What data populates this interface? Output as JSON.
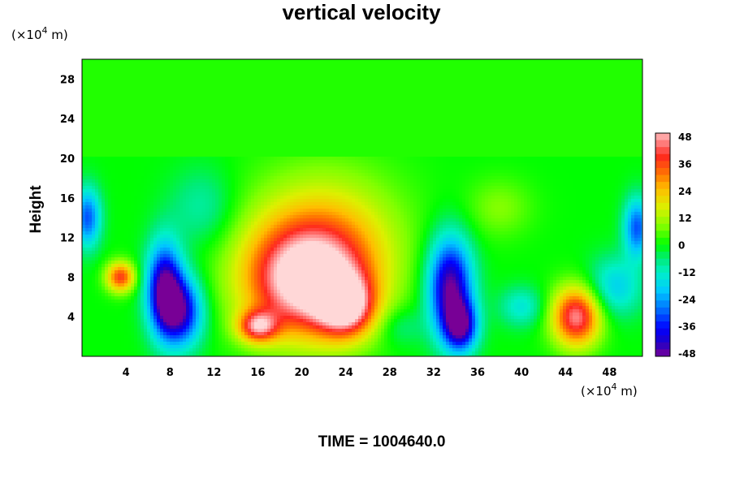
{
  "chart_data": {
    "type": "heatmap",
    "title": "vertical velocity",
    "ylabel": "Height",
    "x_unit": "(×10",
    "y_unit": "(×10",
    "unit_exp": "4",
    "unit_tail": " m)",
    "xlim": [
      0,
      51
    ],
    "ylim": [
      0,
      30
    ],
    "x_ticks": [
      4,
      8,
      12,
      16,
      20,
      24,
      28,
      32,
      36,
      40,
      44,
      48
    ],
    "y_ticks": [
      4,
      8,
      12,
      16,
      20,
      24,
      28
    ],
    "colorbar": {
      "min": -48,
      "max": 48,
      "ticks": [
        48,
        36,
        24,
        12,
        0,
        -12,
        -24,
        -36,
        -48
      ]
    },
    "features": [
      {
        "x": 20.5,
        "y": 7.5,
        "value": 52,
        "rx": 5.5,
        "ry": 5.5
      },
      {
        "x": 24.0,
        "y": 5.0,
        "value": 38,
        "rx": 2.5,
        "ry": 3.0
      },
      {
        "x": 16.0,
        "y": 3.0,
        "value": 36,
        "rx": 1.8,
        "ry": 1.6
      },
      {
        "x": 45.0,
        "y": 4.0,
        "value": 45,
        "rx": 2.2,
        "ry": 3.0
      },
      {
        "x": 3.5,
        "y": 8.0,
        "value": 36,
        "rx": 1.3,
        "ry": 1.5
      },
      {
        "x": 22.0,
        "y": 12.0,
        "value": 20,
        "rx": 7.0,
        "ry": 7.0
      },
      {
        "x": 7.5,
        "y": 7.0,
        "value": -45,
        "rx": 1.6,
        "ry": 4.5
      },
      {
        "x": 9.0,
        "y": 4.5,
        "value": -40,
        "rx": 2.0,
        "ry": 3.5
      },
      {
        "x": 33.5,
        "y": 7.0,
        "value": -48,
        "rx": 2.0,
        "ry": 5.0
      },
      {
        "x": 34.5,
        "y": 3.0,
        "value": -38,
        "rx": 1.5,
        "ry": 2.5
      },
      {
        "x": 0.5,
        "y": 14.0,
        "value": -30,
        "rx": 1.2,
        "ry": 3.0
      },
      {
        "x": 50.5,
        "y": 13.0,
        "value": -30,
        "rx": 1.2,
        "ry": 3.0
      },
      {
        "x": 48.5,
        "y": 7.0,
        "value": -18,
        "rx": 2.5,
        "ry": 3.0
      },
      {
        "x": 40.0,
        "y": 5.0,
        "value": -14,
        "rx": 2.0,
        "ry": 2.0
      },
      {
        "x": 11.0,
        "y": 15.0,
        "value": -10,
        "rx": 3.0,
        "ry": 4.0
      },
      {
        "x": 38.0,
        "y": 15.0,
        "value": 8,
        "rx": 3.0,
        "ry": 3.0
      },
      {
        "x": 29.0,
        "y": 3.0,
        "value": -8,
        "rx": 2.0,
        "ry": 2.0
      }
    ],
    "strata_top": 20,
    "upper_value": 2
  },
  "footer": {
    "time_label": "TIME = 1004640.0"
  }
}
